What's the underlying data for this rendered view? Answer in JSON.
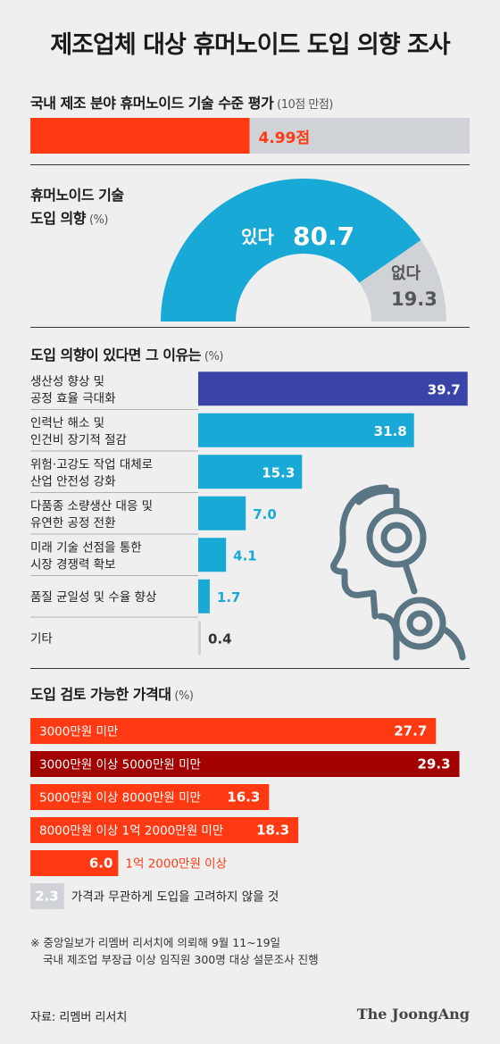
{
  "title": "제조업체 대상 휴머노이드 도입 의향 조사",
  "section1": {
    "title": "국내 제조 분야 휴머노이드 기술 수준 평가",
    "unit": "(10점 만점)",
    "value": 4.99,
    "value_label": "4.99점",
    "max": 10
  },
  "section2": {
    "title_line1": "휴머노이드 기술",
    "title_line2": "도입 의향",
    "unit": "(%)"
  },
  "section3": {
    "title": "도입 의향이 있다면 그 이유는",
    "unit": "(%)"
  },
  "section4": {
    "title": "도입 검토 가능한 가격대",
    "unit": "(%)"
  },
  "footnote": {
    "line1": "※ 중앙일보가 리멤버 리서치에 의뢰해 9월 11~19일",
    "line2": "국내 제조업 부장급 이상 임직원 300명 대상 설문조사 진행"
  },
  "source": "자료: 리멤버 리서치",
  "logo": "The JoongAng",
  "icons": {
    "robot": "robot-head-icon"
  },
  "colors": {
    "accent_red": "#ff3a13",
    "dark_red": "#a30000",
    "cyan": "#19a9d6",
    "navy": "#3a43a8",
    "gray": "#cfd3d8",
    "robot": "#5a7684"
  },
  "chart_data": [
    {
      "type": "bar",
      "title": "국내 제조 분야 휴머노이드 기술 수준 평가",
      "unit": "10점 만점",
      "values": [
        4.99
      ],
      "ylim": [
        0,
        10
      ]
    },
    {
      "type": "pie",
      "style": "half-donut",
      "title": "휴머노이드 기술 도입 의향",
      "unit": "%",
      "slices": [
        {
          "label": "있다",
          "value": 80.7,
          "value_label": "80.7"
        },
        {
          "label": "없다",
          "value": 19.3,
          "value_label": "19.3"
        }
      ]
    },
    {
      "type": "bar",
      "orientation": "horizontal",
      "title": "도입 의향이 있다면 그 이유는",
      "unit": "%",
      "max": 40,
      "items": [
        {
          "label": [
            "생산성 향상 및",
            "공정 효율 극대화"
          ],
          "value": 39.7,
          "value_label": "39.7"
        },
        {
          "label": [
            "인력난 해소 및",
            "인건비 장기적 절감"
          ],
          "value": 31.8,
          "value_label": "31.8"
        },
        {
          "label": [
            "위험·고강도 작업 대체로",
            "산업 안전성 강화"
          ],
          "value": 15.3,
          "value_label": "15.3"
        },
        {
          "label": [
            "다품종 소량생산 대응 및",
            "유연한 공정 전환"
          ],
          "value": 7.0,
          "value_label": "7.0"
        },
        {
          "label": [
            "미래 기술 선점을 통한",
            "시장 경쟁력 확보"
          ],
          "value": 4.1,
          "value_label": "4.1"
        },
        {
          "label": [
            "품질 균일성 및 수율 향상"
          ],
          "value": 1.7,
          "value_label": "1.7"
        },
        {
          "label": [
            "기타"
          ],
          "value": 0.4,
          "value_label": "0.4"
        }
      ]
    },
    {
      "type": "bar",
      "orientation": "horizontal",
      "title": "도입 검토 가능한 가격대",
      "unit": "%",
      "max": 30,
      "items": [
        {
          "label": "3000만원 미만",
          "value": 27.7,
          "value_label": "27.7"
        },
        {
          "label": "3000만원 이상 5000만원 미만",
          "value": 29.3,
          "value_label": "29.3"
        },
        {
          "label": "5000만원 이상 8000만원 미만",
          "value": 16.3,
          "value_label": "16.3"
        },
        {
          "label": "8000만원 이상 1억 2000만원 미만",
          "value": 18.3,
          "value_label": "18.3"
        },
        {
          "label": "1억 2000만원 이상",
          "value": 6.0,
          "value_label": "6.0"
        },
        {
          "label": "가격과 무관하게 도입을 고려하지 않을 것",
          "value": 2.3,
          "value_label": "2.3"
        }
      ]
    }
  ]
}
